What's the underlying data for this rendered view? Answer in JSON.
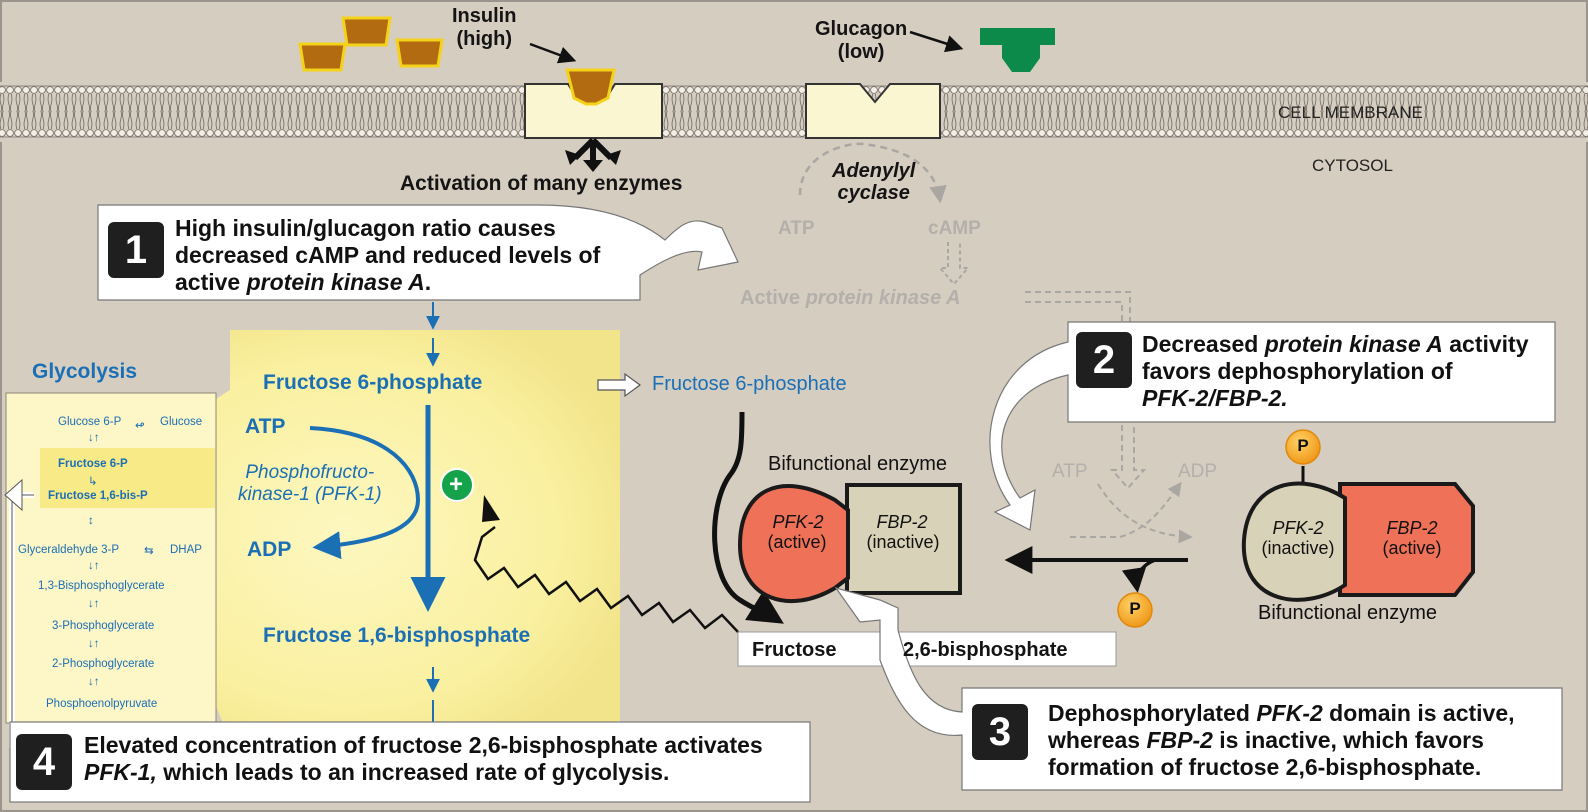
{
  "membrane": {
    "insulin": "Insulin\n(high)",
    "glucagon": "Glucagon\n(low)",
    "cell_membrane": "CELL MEMBRANE",
    "cytosol": "CYTOSOL",
    "activation": "Activation of many enzymes",
    "adenylyl_cyclase": "Adenylyl\ncyclase",
    "atp": "ATP",
    "camp": "cAMP",
    "pka_prefix": "Active",
    "pka_italic": "protein kinase A"
  },
  "callouts": {
    "c1": {
      "number": "1",
      "line1": "High insulin/glucagon ratio causes",
      "line2": "decreased cAMP and reduced levels of",
      "line3_a": "active ",
      "line3_b": "protein kinase A",
      "line3_c": "."
    },
    "c2": {
      "number": "2",
      "line1_a": "Decreased ",
      "line1_b": "protein kinase A",
      "line1_c": " activity",
      "line2": "favors dephosphorylation of",
      "line3": "PFK-2/FBP-2."
    },
    "c3": {
      "number": "3",
      "line1_a": "Dephosphorylated ",
      "line1_b": "PFK-2",
      "line1_c": " domain is active,",
      "line2_a": "whereas ",
      "line2_b": "FBP-2",
      "line2_c": " is inactive, which favors",
      "line3": "formation of fructose 2,6-bisphosphate."
    },
    "c4": {
      "number": "4",
      "line1": "Elevated concentration of fructose 2,6-bisphosphate activates",
      "line2_a": "PFK-1,",
      "line2_b": " which leads to an increased rate of glycolysis."
    }
  },
  "pathway": {
    "glycolysis_title": "Glycolysis",
    "f6p": "Fructose 6-phosphate",
    "f6p_right": "Fructose 6-phosphate",
    "atp": "ATP",
    "adp": "ADP",
    "pfk1": "Phosphofructo-\nkinase-1 (PFK-1)",
    "plus": "+",
    "f16bp": "Fructose 1,6-bisphosphate",
    "f26bp_a": "Fructose",
    "f26bp_b": "2,6-bisphosphate"
  },
  "glycolysis_list": {
    "g6p": "Glucose 6-P",
    "glucose": "Glucose",
    "f6p": "Fructose 6-P",
    "f16bp": "Fructose 1,6-bis-P",
    "g3p": "Glyceraldehyde 3-P",
    "dhap": "DHAP",
    "bpg13": "1,3-Bisphosphoglycerate",
    "pg3": "3-Phosphoglycerate",
    "pg2": "2-Phosphoglycerate",
    "pep": "Phosphoenolpyruvate",
    "arrow": "↓↑"
  },
  "enzyme_left": {
    "title": "Bifunctional enzyme",
    "pfk2": "PFK-2",
    "pfk2_state": "(active)",
    "fbp2": "FBP-2",
    "fbp2_state": "(inactive)"
  },
  "enzyme_right": {
    "title": "Bifunctional enzyme",
    "pfk2": "PFK-2",
    "pfk2_state": "(inactive)",
    "fbp2": "FBP-2",
    "fbp2_state": "(active)",
    "phosphate": "P"
  },
  "middle": {
    "atp": "ATP",
    "adp": "ADP",
    "phosphate": "P"
  },
  "colors": {
    "background": "#d6cdc1",
    "insulin": "#b36b12",
    "glucagon": "#0b8a4a",
    "pathway_blue": "#1a6fb5",
    "highlight_yellow": "#fbf2a0",
    "pfk2_active": "#ee7158",
    "fbp2_inactive": "#d8d3b8",
    "phosphate": "#f4a31c"
  }
}
